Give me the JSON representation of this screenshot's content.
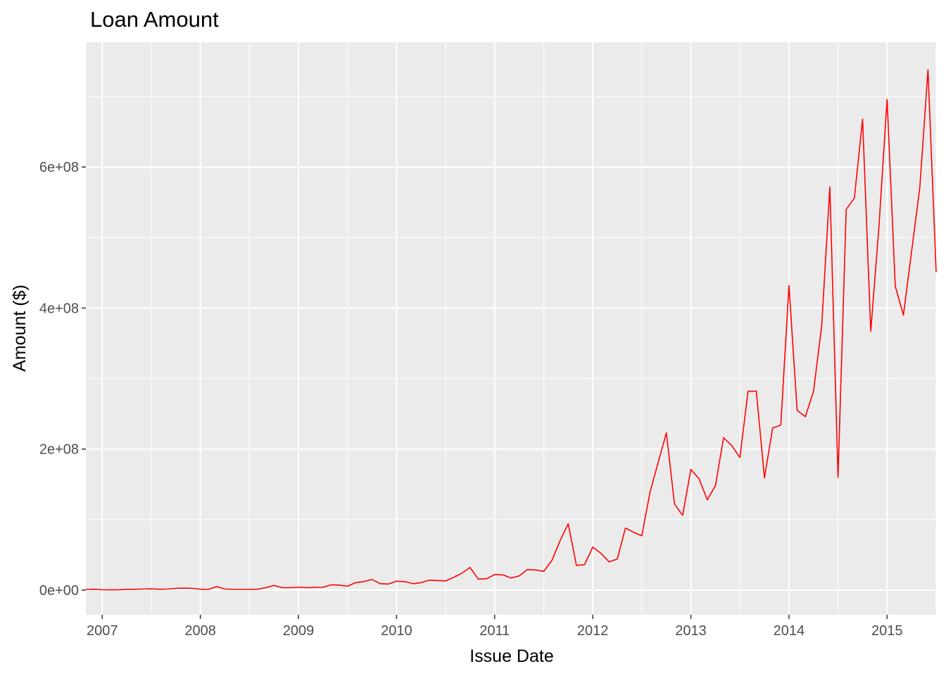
{
  "chart_data": {
    "type": "line",
    "title": "Loan Amount",
    "xlabel": "Issue Date",
    "ylabel": "Amount ($)",
    "x_is_date": true,
    "xlim": [
      "2006-11",
      "2015-07"
    ],
    "ylim": [
      -35000000,
      777000000
    ],
    "x_ticks": [
      "2007-01",
      "2008-01",
      "2009-01",
      "2010-01",
      "2011-01",
      "2012-01",
      "2013-01",
      "2014-01",
      "2015-01"
    ],
    "x_tick_labels": [
      "2007",
      "2008",
      "2009",
      "2010",
      "2011",
      "2012",
      "2013",
      "2014",
      "2015"
    ],
    "y_ticks": [
      0,
      200000000,
      400000000,
      600000000
    ],
    "y_tick_labels": [
      "0e+00",
      "2e+08",
      "4e+08",
      "6e+08"
    ],
    "grid": true,
    "legend": "none",
    "series": [
      {
        "color": "#FF0000",
        "points": [
          [
            "2006-11",
            1000000
          ],
          [
            "2006-12",
            1200000
          ],
          [
            "2007-01",
            500000
          ],
          [
            "2007-02",
            300000
          ],
          [
            "2007-03",
            400000
          ],
          [
            "2007-04",
            900000
          ],
          [
            "2007-05",
            1200000
          ],
          [
            "2007-06",
            1500000
          ],
          [
            "2007-07",
            1800000
          ],
          [
            "2007-08",
            1200000
          ],
          [
            "2007-09",
            1500000
          ],
          [
            "2007-10",
            2500000
          ],
          [
            "2007-11",
            2800000
          ],
          [
            "2007-12",
            2500000
          ],
          [
            "2008-01",
            1200000
          ],
          [
            "2008-02",
            1000000
          ],
          [
            "2008-03",
            5000000
          ],
          [
            "2008-04",
            1500000
          ],
          [
            "2008-05",
            1000000
          ],
          [
            "2008-06",
            1000000
          ],
          [
            "2008-07",
            1000000
          ],
          [
            "2008-08",
            1200000
          ],
          [
            "2008-09",
            3500000
          ],
          [
            "2008-10",
            6500000
          ],
          [
            "2008-11",
            3500000
          ],
          [
            "2008-12",
            3500000
          ],
          [
            "2009-01",
            4000000
          ],
          [
            "2009-02",
            3500000
          ],
          [
            "2009-03",
            3800000
          ],
          [
            "2009-04",
            4000000
          ],
          [
            "2009-05",
            7500000
          ],
          [
            "2009-06",
            7000000
          ],
          [
            "2009-07",
            5500000
          ],
          [
            "2009-08",
            10500000
          ],
          [
            "2009-09",
            12000000
          ],
          [
            "2009-10",
            15000000
          ],
          [
            "2009-11",
            9000000
          ],
          [
            "2009-12",
            8500000
          ],
          [
            "2010-01",
            12500000
          ],
          [
            "2010-02",
            12000000
          ],
          [
            "2010-03",
            9000000
          ],
          [
            "2010-04",
            10500000
          ],
          [
            "2010-05",
            14000000
          ],
          [
            "2010-06",
            13500000
          ],
          [
            "2010-07",
            13000000
          ],
          [
            "2010-08",
            18000000
          ],
          [
            "2010-09",
            24000000
          ],
          [
            "2010-10",
            32000000
          ],
          [
            "2010-11",
            15500000
          ],
          [
            "2010-12",
            16000000
          ],
          [
            "2011-01",
            22000000
          ],
          [
            "2011-02",
            21500000
          ],
          [
            "2011-03",
            17000000
          ],
          [
            "2011-04",
            20000000
          ],
          [
            "2011-05",
            29000000
          ],
          [
            "2011-06",
            28500000
          ],
          [
            "2011-07",
            26500000
          ],
          [
            "2011-08",
            42000000
          ],
          [
            "2011-09",
            70000000
          ],
          [
            "2011-10",
            94000000
          ],
          [
            "2011-11",
            35000000
          ],
          [
            "2011-12",
            36000000
          ],
          [
            "2012-01",
            61000000
          ],
          [
            "2012-02",
            52000000
          ],
          [
            "2012-03",
            40000000
          ],
          [
            "2012-04",
            44000000
          ],
          [
            "2012-05",
            88000000
          ],
          [
            "2012-06",
            82000000
          ],
          [
            "2012-07",
            77000000
          ],
          [
            "2012-08",
            139000000
          ],
          [
            "2012-09",
            181000000
          ],
          [
            "2012-10",
            223000000
          ],
          [
            "2012-11",
            122000000
          ],
          [
            "2012-12",
            106000000
          ],
          [
            "2013-01",
            171000000
          ],
          [
            "2013-02",
            158000000
          ],
          [
            "2013-03",
            128000000
          ],
          [
            "2013-04",
            148000000
          ],
          [
            "2013-05",
            216000000
          ],
          [
            "2013-06",
            205000000
          ],
          [
            "2013-07",
            188000000
          ],
          [
            "2013-08",
            282000000
          ],
          [
            "2013-09",
            282000000
          ],
          [
            "2013-10",
            159000000
          ],
          [
            "2013-11",
            230000000
          ],
          [
            "2013-12",
            234000000
          ],
          [
            "2014-01",
            432000000
          ],
          [
            "2014-02",
            255000000
          ],
          [
            "2014-03",
            246000000
          ],
          [
            "2014-04",
            282000000
          ],
          [
            "2014-05",
            375000000
          ],
          [
            "2014-06",
            572000000
          ],
          [
            "2014-07",
            160000000
          ],
          [
            "2014-08",
            540000000
          ],
          [
            "2014-09",
            556000000
          ],
          [
            "2014-10",
            668000000
          ],
          [
            "2014-11",
            367000000
          ],
          [
            "2014-12",
            515000000
          ],
          [
            "2015-01",
            696000000
          ],
          [
            "2015-02",
            431000000
          ],
          [
            "2015-03",
            390000000
          ],
          [
            "2015-04",
            481000000
          ],
          [
            "2015-05",
            571000000
          ],
          [
            "2015-06",
            738000000
          ],
          [
            "2015-07",
            451000000
          ]
        ]
      }
    ]
  }
}
